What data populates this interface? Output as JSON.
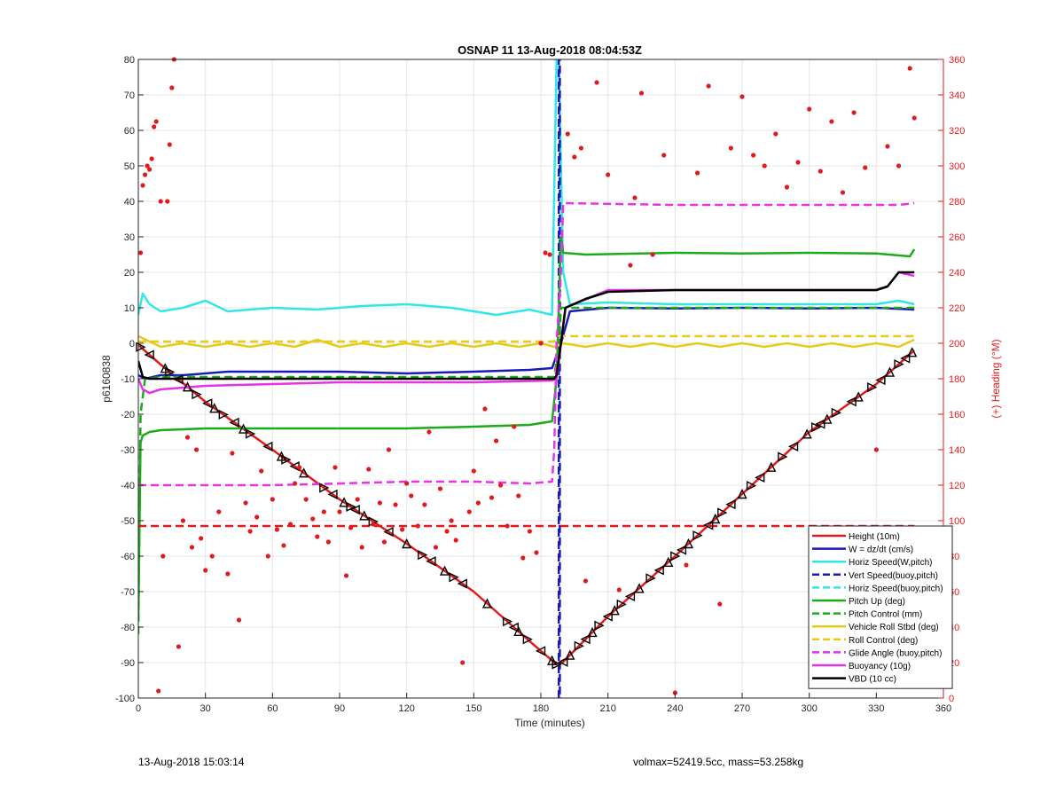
{
  "footer": {
    "left": "13-Aug-2018 15:03:14",
    "right": "volmax=52419.5cc, mass=53.258kg"
  },
  "chart_data": {
    "type": "line",
    "title": "OSNAP 11 13-Aug-2018 08:04:53Z",
    "xlabel": "Time (minutes)",
    "ylabel": "p6160838",
    "y2label": "(+) Heading (°M)",
    "xlim": [
      0,
      360
    ],
    "ylim": [
      -100,
      80
    ],
    "y2lim": [
      0,
      360
    ],
    "xticks": [
      0,
      30,
      60,
      90,
      120,
      150,
      180,
      210,
      240,
      270,
      300,
      330,
      360
    ],
    "yticks": [
      -100,
      -90,
      -80,
      -70,
      -60,
      -50,
      -40,
      -30,
      -20,
      -10,
      0,
      10,
      20,
      30,
      40,
      50,
      60,
      70,
      80
    ],
    "y2ticks": [
      0,
      20,
      40,
      60,
      80,
      100,
      120,
      140,
      160,
      180,
      200,
      220,
      240,
      260,
      280,
      300,
      320,
      340,
      360
    ],
    "grid": true,
    "legend_position": "bottom-right",
    "colors": {
      "red": "#e31a1c",
      "blue": "#1a1ab8",
      "cyan": "#33e6e6",
      "green": "#1aaa1a",
      "yellow": "#e6cc1a",
      "magenta": "#e633e6",
      "black": "#000000",
      "heading_axis": "#e31a1c"
    },
    "series": [
      {
        "name": "Height (10m)",
        "color": "red",
        "dash": false,
        "x": [
          0,
          10,
          30,
          60,
          90,
          120,
          150,
          175,
          187,
          190,
          210,
          240,
          270,
          300,
          330,
          347
        ],
        "y": [
          -0.5,
          -6,
          -16.5,
          -30,
          -44,
          -56.5,
          -70,
          -84,
          -90.5,
          -89.8,
          -77,
          -60,
          -42.5,
          -25,
          -11.5,
          -2
        ]
      },
      {
        "name": "W = dz/dt (cm/s)",
        "color": "blue",
        "dash": false,
        "x": [
          0,
          3,
          10,
          20,
          40,
          60,
          90,
          120,
          150,
          175,
          185,
          189,
          193,
          210,
          240,
          270,
          300,
          330,
          347
        ],
        "y": [
          -9,
          -10,
          -9,
          -9,
          -8,
          -8,
          -8,
          -8.5,
          -8,
          -7.5,
          -7,
          0,
          9,
          10,
          9.8,
          10,
          9.8,
          10,
          9.5
        ]
      },
      {
        "name": "Horiz Speed(W,pitch)",
        "color": "cyan",
        "dash": false,
        "x": [
          0,
          2,
          5,
          10,
          20,
          30,
          40,
          50,
          60,
          80,
          100,
          120,
          140,
          160,
          175,
          185,
          187,
          188,
          190,
          193,
          210,
          240,
          270,
          300,
          330,
          340,
          347
        ],
        "y": [
          8,
          14,
          11,
          9,
          10,
          12,
          9,
          9.5,
          10,
          9.5,
          10.5,
          11,
          10,
          8,
          9.5,
          8,
          80,
          80,
          20,
          11,
          11.5,
          11,
          11,
          11,
          11,
          12,
          11
        ]
      },
      {
        "name": "Vert Speed(buoy,pitch)",
        "color": "blue",
        "dash": true,
        "x": [
          188,
          188,
          188.5,
          188.5,
          189
        ],
        "y": [
          -100,
          80,
          80,
          -100,
          -100
        ]
      },
      {
        "name": "Horiz Speed(buoy,pitch)",
        "color": "cyan",
        "dash": true,
        "x": [
          186,
          186.5,
          187
        ],
        "y": [
          80,
          80,
          80
        ]
      },
      {
        "name": "Pitch Up (deg)",
        "color": "green",
        "dash": false,
        "x": [
          0,
          1,
          2,
          5,
          10,
          30,
          60,
          90,
          120,
          150,
          175,
          185,
          187,
          189,
          190,
          200,
          240,
          270,
          300,
          330,
          345,
          347
        ],
        "y": [
          -78,
          -28,
          -26,
          -25,
          -24.5,
          -24,
          -24,
          -24,
          -24,
          -23.5,
          -23,
          -22,
          -10,
          30,
          25.5,
          25,
          25.5,
          25.3,
          25.5,
          25.3,
          24.5,
          26.5
        ]
      },
      {
        "name": "Pitch Control (mm)",
        "color": "green",
        "dash": true,
        "x": [
          0,
          1,
          3,
          10,
          60,
          120,
          180,
          186,
          188,
          189,
          192,
          240,
          300,
          347
        ],
        "y": [
          -82,
          -20,
          -10,
          -9.5,
          -9.5,
          -9.5,
          -9.5,
          -9.5,
          0,
          10,
          10,
          10,
          10,
          10
        ]
      },
      {
        "name": "Vehicle Roll Stbd (deg)",
        "color": "yellow",
        "dash": false,
        "x": [
          0,
          10,
          20,
          30,
          40,
          50,
          60,
          70,
          80,
          90,
          100,
          110,
          120,
          130,
          140,
          150,
          160,
          170,
          180,
          186,
          190,
          200,
          210,
          220,
          230,
          240,
          250,
          260,
          270,
          280,
          290,
          300,
          310,
          320,
          330,
          340,
          347
        ],
        "y": [
          2,
          -1,
          0,
          -1,
          0,
          -1,
          0,
          -1,
          1,
          -1,
          0,
          -1,
          0,
          -1,
          0,
          -1,
          0,
          -1,
          0,
          -1,
          0,
          -1,
          0,
          -1,
          0,
          -1,
          0,
          -1,
          0,
          -1,
          0,
          -1,
          0,
          -1,
          0,
          -1,
          1
        ]
      },
      {
        "name": "Roll Control (deg)",
        "color": "yellow",
        "dash": true,
        "x": [
          0,
          60,
          120,
          186,
          188,
          190,
          250,
          300,
          347
        ],
        "y": [
          0.5,
          0.5,
          0.5,
          0.5,
          2,
          2,
          2,
          2,
          2
        ]
      },
      {
        "name": "Glide Angle (buoy,pitch)",
        "color": "magenta",
        "dash": true,
        "x": [
          0,
          30,
          60,
          90,
          120,
          150,
          175,
          185,
          186,
          187,
          189,
          190,
          240,
          300,
          340,
          347
        ],
        "y": [
          -40,
          -40,
          -40,
          -39.5,
          -39,
          -39,
          -39.5,
          -39,
          -30,
          0,
          20,
          39.5,
          39,
          39,
          39,
          39.5
        ]
      },
      {
        "name": "Buoyancy (10g)",
        "color": "magenta",
        "dash": false,
        "x": [
          0,
          2,
          5,
          10,
          30,
          60,
          90,
          120,
          150,
          185,
          187,
          189,
          191,
          210,
          240,
          270,
          300,
          330,
          335,
          340,
          347
        ],
        "y": [
          -10,
          -13,
          -14,
          -13,
          -12,
          -11.5,
          -11,
          -11,
          -11,
          -10.5,
          -10,
          0,
          10,
          15,
          15,
          15,
          15,
          15,
          16,
          20,
          19
        ]
      },
      {
        "name": "VBD (10 cc)",
        "color": "black",
        "dash": false,
        "x": [
          0,
          2,
          5,
          10,
          40,
          90,
          150,
          186,
          187,
          189,
          191,
          200,
          210,
          240,
          270,
          300,
          330,
          335,
          340,
          347
        ],
        "y": [
          -5,
          -9.5,
          -10,
          -10,
          -10,
          -10,
          -10,
          -10,
          -9,
          0,
          10,
          12.5,
          14.5,
          15,
          15,
          15,
          15,
          16,
          20,
          20
        ]
      },
      {
        "name": "",
        "color": "red",
        "dash": true,
        "axis": "y2",
        "x": [
          0,
          347
        ],
        "y": [
          97,
          97
        ]
      }
    ],
    "markers": {
      "color": "black",
      "x": [
        1,
        5,
        12,
        14,
        18,
        22,
        26,
        31,
        34,
        38,
        43,
        47,
        50,
        58,
        64,
        66,
        70,
        74,
        83,
        87,
        92,
        95,
        97,
        101,
        105,
        112,
        120,
        127,
        131,
        137,
        141,
        145,
        156,
        165,
        168,
        170,
        174,
        180,
        185,
        187,
        190,
        193,
        197,
        200,
        203,
        206,
        210,
        213,
        216,
        220,
        224,
        229,
        233,
        237,
        240,
        243,
        246,
        250,
        255,
        258,
        261,
        265,
        270,
        274,
        278,
        283,
        288,
        293,
        299,
        303,
        305,
        308,
        312,
        319,
        322,
        328,
        332,
        336,
        340,
        343,
        346
      ]
    },
    "heading_points": {
      "color": "red",
      "axis": "y2",
      "x": [
        1,
        2,
        3,
        4,
        5,
        6,
        7,
        8,
        9,
        10,
        11,
        13,
        14,
        15,
        16,
        18,
        20,
        22,
        24,
        26,
        28,
        30,
        33,
        36,
        40,
        42,
        45,
        48,
        50,
        53,
        55,
        58,
        60,
        62,
        65,
        68,
        70,
        72,
        75,
        78,
        80,
        83,
        85,
        88,
        90,
        93,
        95,
        98,
        100,
        103,
        105,
        108,
        110,
        112,
        115,
        118,
        120,
        122,
        125,
        128,
        130,
        133,
        135,
        138,
        140,
        142,
        145,
        148,
        150,
        152,
        155,
        158,
        160,
        162,
        165,
        168,
        170,
        172,
        175,
        178,
        180,
        182,
        184,
        192,
        195,
        198,
        200,
        205,
        210,
        215,
        220,
        222,
        225,
        230,
        235,
        240,
        245,
        250,
        255,
        260,
        265,
        270,
        275,
        280,
        285,
        290,
        295,
        300,
        305,
        310,
        315,
        320,
        325,
        330,
        335,
        340,
        345,
        347
      ],
      "y": [
        251,
        289,
        295,
        300,
        298,
        304,
        322,
        325,
        4,
        280,
        80,
        280,
        312,
        344,
        360,
        29,
        100,
        147,
        85,
        140,
        90,
        72,
        80,
        105,
        70,
        138,
        44,
        110,
        94,
        102,
        128,
        80,
        112,
        95,
        86,
        98,
        121,
        130,
        112,
        101,
        91,
        105,
        88,
        130,
        105,
        69,
        96,
        112,
        85,
        129,
        98,
        110,
        88,
        140,
        109,
        95,
        121,
        114,
        97,
        109,
        150,
        85,
        118,
        94,
        100,
        89,
        20,
        105,
        128,
        110,
        163,
        113,
        145,
        120,
        97,
        153,
        114,
        79,
        94,
        82,
        200,
        251,
        250,
        318,
        305,
        310,
        66,
        347,
        295,
        61,
        244,
        282,
        341,
        250,
        306,
        3,
        75,
        296,
        345,
        53,
        310,
        339,
        306,
        300,
        318,
        288,
        302,
        332,
        297,
        325,
        285,
        330,
        299,
        140,
        311,
        300,
        355,
        327
      ]
    }
  }
}
